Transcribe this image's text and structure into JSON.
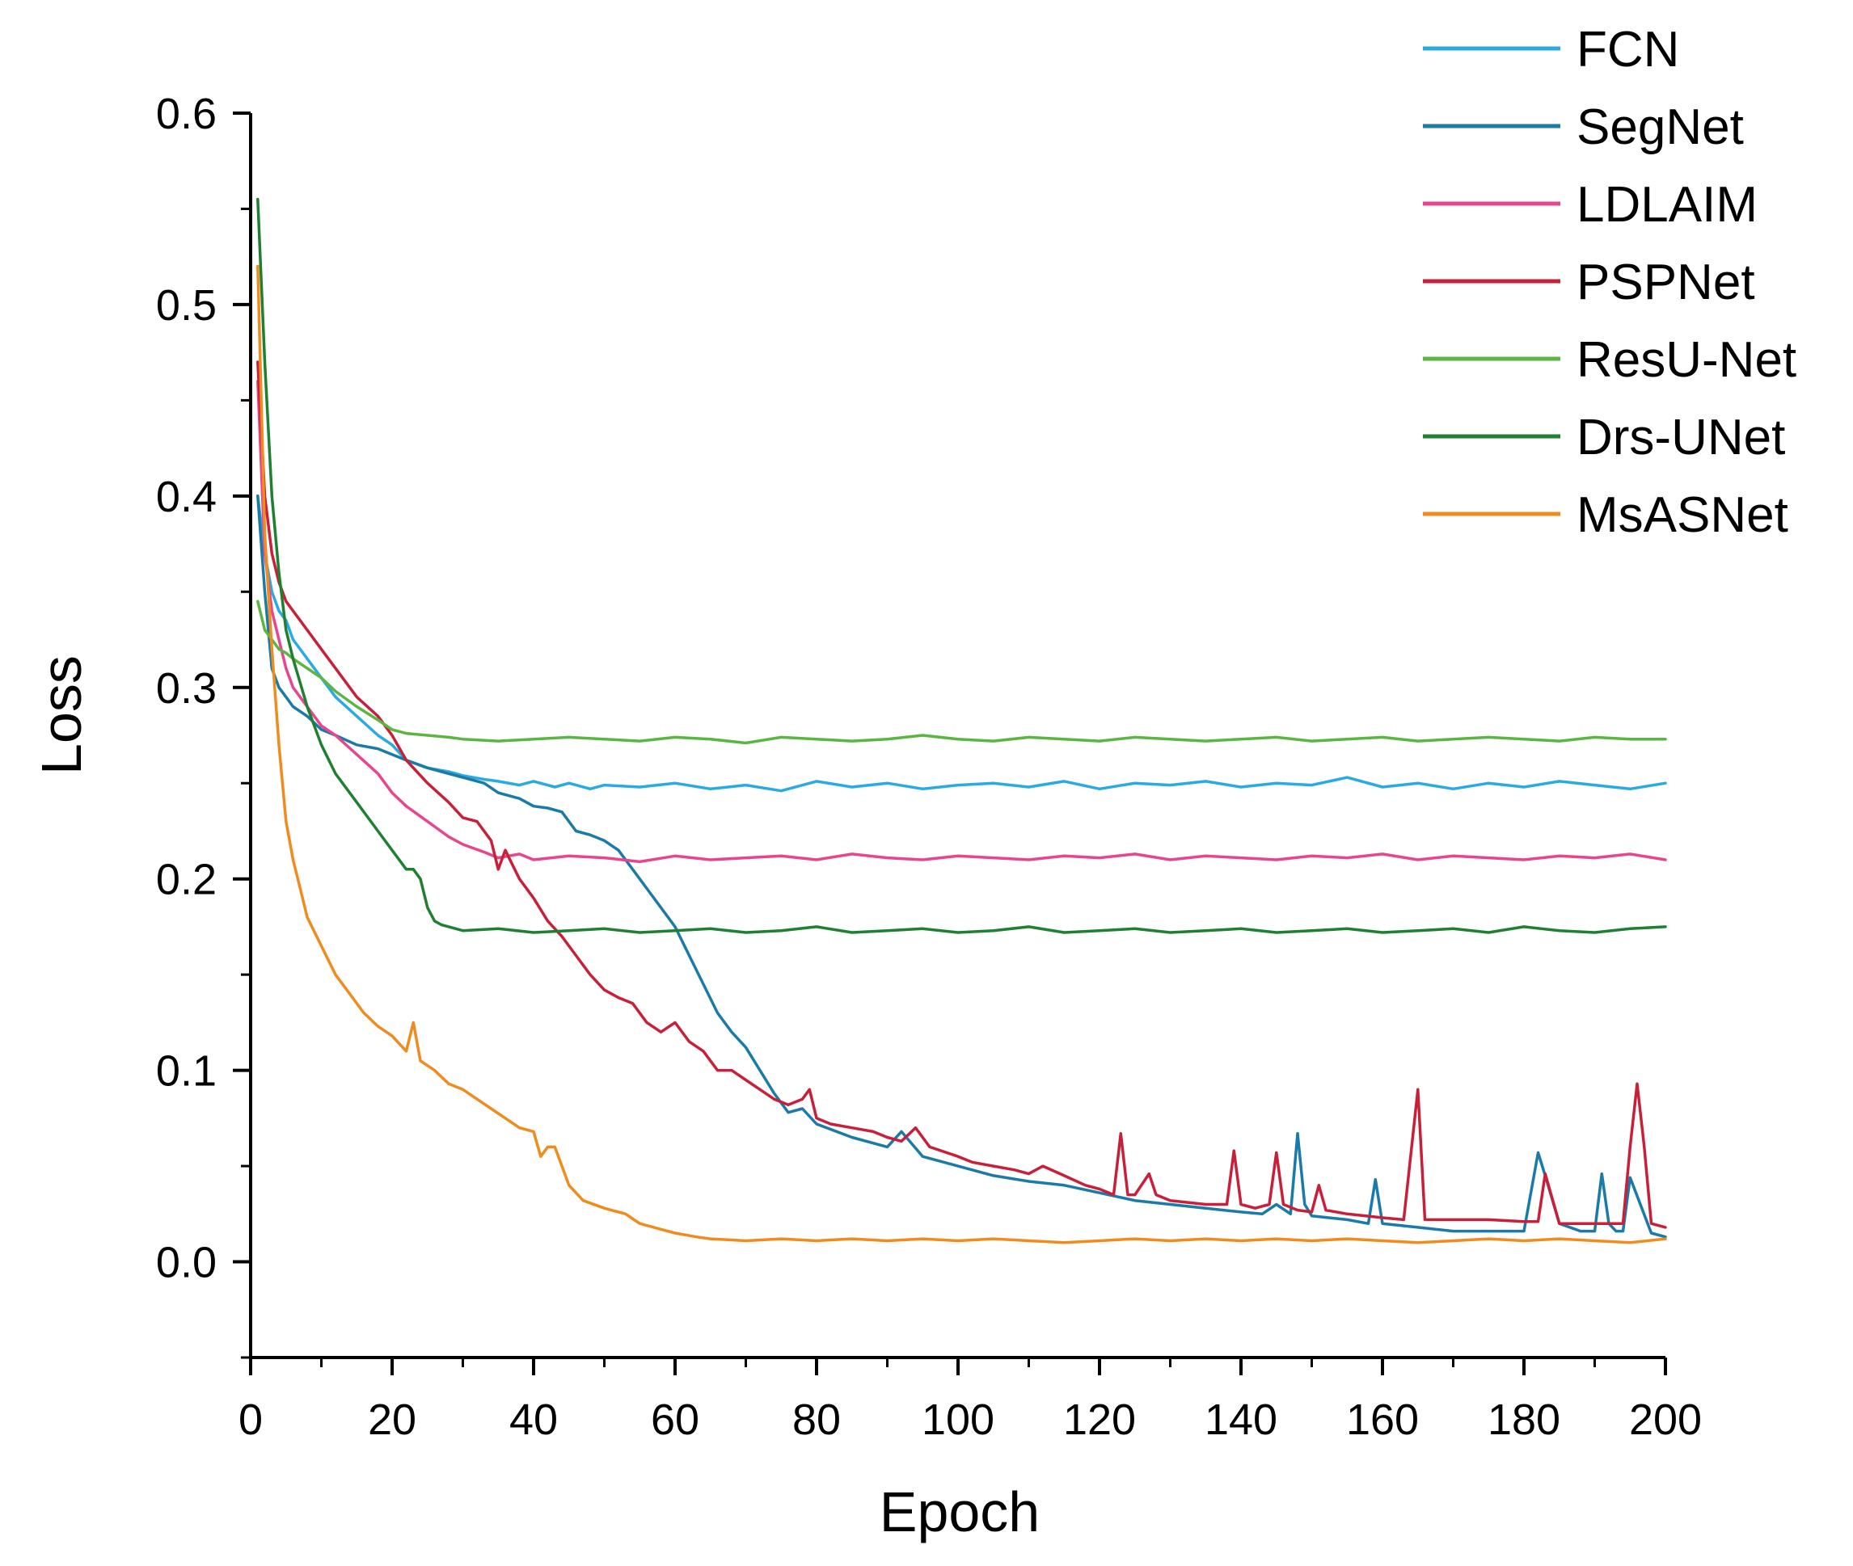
{
  "chart_data": {
    "type": "line",
    "title": "",
    "xlabel": "Epoch",
    "ylabel": "Loss",
    "xlim": [
      0,
      200
    ],
    "ylim": [
      -0.05,
      0.6
    ],
    "xticks": [
      0,
      20,
      40,
      60,
      80,
      100,
      120,
      140,
      160,
      180,
      200
    ],
    "yticks": [
      0.0,
      0.1,
      0.2,
      0.3,
      0.4,
      0.5,
      0.6
    ],
    "xtick_labels": [
      "0",
      "20",
      "40",
      "60",
      "80",
      "100",
      "120",
      "140",
      "160",
      "180",
      "200"
    ],
    "ytick_labels": [
      "0.0",
      "0.1",
      "0.2",
      "0.3",
      "0.4",
      "0.5",
      "0.6"
    ],
    "legend_position": "top-right",
    "series": [
      {
        "name": "FCN",
        "color": "#29abe2",
        "x": [
          1,
          2,
          3,
          4,
          5,
          6,
          8,
          10,
          12,
          15,
          18,
          20,
          22,
          25,
          28,
          30,
          33,
          35,
          38,
          40,
          43,
          45,
          48,
          50,
          55,
          60,
          65,
          70,
          75,
          80,
          85,
          90,
          95,
          100,
          105,
          110,
          115,
          120,
          125,
          130,
          135,
          140,
          145,
          150,
          155,
          160,
          165,
          170,
          175,
          180,
          185,
          190,
          195,
          200
        ],
        "y": [
          0.4,
          0.37,
          0.35,
          0.34,
          0.335,
          0.325,
          0.315,
          0.305,
          0.295,
          0.285,
          0.275,
          0.27,
          0.262,
          0.258,
          0.256,
          0.254,
          0.252,
          0.251,
          0.249,
          0.251,
          0.248,
          0.25,
          0.247,
          0.249,
          0.248,
          0.25,
          0.247,
          0.249,
          0.246,
          0.251,
          0.248,
          0.25,
          0.247,
          0.249,
          0.25,
          0.248,
          0.251,
          0.247,
          0.25,
          0.249,
          0.251,
          0.248,
          0.25,
          0.249,
          0.253,
          0.248,
          0.25,
          0.247,
          0.25,
          0.248,
          0.251,
          0.249,
          0.247,
          0.25
        ]
      },
      {
        "name": "SegNet",
        "color": "#1a7aa8",
        "x": [
          1,
          2,
          3,
          4,
          5,
          6,
          8,
          10,
          12,
          15,
          18,
          20,
          22,
          25,
          28,
          30,
          33,
          35,
          38,
          40,
          42,
          44,
          46,
          48,
          50,
          52,
          54,
          56,
          58,
          60,
          62,
          64,
          66,
          68,
          70,
          72,
          74,
          76,
          78,
          80,
          85,
          90,
          92,
          95,
          100,
          105,
          110,
          115,
          120,
          125,
          130,
          135,
          140,
          143,
          145,
          147,
          148,
          149,
          150,
          155,
          158,
          159,
          160,
          165,
          170,
          175,
          180,
          182,
          183,
          185,
          188,
          190,
          191,
          192,
          193,
          194,
          195,
          198,
          200
        ],
        "y": [
          0.4,
          0.35,
          0.31,
          0.3,
          0.295,
          0.29,
          0.285,
          0.278,
          0.275,
          0.27,
          0.268,
          0.265,
          0.262,
          0.258,
          0.255,
          0.253,
          0.25,
          0.245,
          0.242,
          0.238,
          0.237,
          0.235,
          0.225,
          0.223,
          0.22,
          0.215,
          0.205,
          0.195,
          0.185,
          0.175,
          0.16,
          0.145,
          0.13,
          0.12,
          0.112,
          0.1,
          0.088,
          0.078,
          0.08,
          0.072,
          0.065,
          0.06,
          0.068,
          0.055,
          0.05,
          0.045,
          0.042,
          0.04,
          0.036,
          0.032,
          0.03,
          0.028,
          0.026,
          0.025,
          0.03,
          0.025,
          0.067,
          0.03,
          0.024,
          0.022,
          0.02,
          0.043,
          0.02,
          0.018,
          0.016,
          0.016,
          0.016,
          0.057,
          0.045,
          0.02,
          0.016,
          0.016,
          0.046,
          0.02,
          0.016,
          0.016,
          0.044,
          0.015,
          0.013
        ]
      },
      {
        "name": "LDLAIM",
        "color": "#e8468c",
        "x": [
          1,
          2,
          3,
          4,
          5,
          6,
          8,
          10,
          12,
          15,
          18,
          20,
          22,
          25,
          28,
          30,
          33,
          35,
          38,
          40,
          45,
          50,
          55,
          60,
          65,
          70,
          75,
          80,
          85,
          90,
          95,
          100,
          105,
          110,
          115,
          120,
          125,
          130,
          135,
          140,
          145,
          150,
          155,
          160,
          165,
          170,
          175,
          180,
          185,
          190,
          195,
          200
        ],
        "y": [
          0.46,
          0.37,
          0.34,
          0.325,
          0.31,
          0.3,
          0.29,
          0.28,
          0.275,
          0.265,
          0.255,
          0.245,
          0.238,
          0.23,
          0.222,
          0.218,
          0.214,
          0.211,
          0.213,
          0.21,
          0.212,
          0.211,
          0.209,
          0.212,
          0.21,
          0.211,
          0.212,
          0.21,
          0.213,
          0.211,
          0.21,
          0.212,
          0.211,
          0.21,
          0.212,
          0.211,
          0.213,
          0.21,
          0.212,
          0.211,
          0.21,
          0.212,
          0.211,
          0.213,
          0.21,
          0.212,
          0.211,
          0.21,
          0.212,
          0.211,
          0.213,
          0.21
        ]
      },
      {
        "name": "PSPNet",
        "color": "#c8203a",
        "x": [
          1,
          2,
          3,
          4,
          5,
          6,
          8,
          10,
          12,
          15,
          18,
          20,
          22,
          25,
          28,
          30,
          32,
          34,
          35,
          36,
          38,
          40,
          42,
          44,
          46,
          48,
          50,
          52,
          54,
          56,
          58,
          60,
          62,
          64,
          66,
          68,
          70,
          72,
          74,
          76,
          78,
          79,
          80,
          82,
          85,
          88,
          90,
          92,
          94,
          96,
          100,
          102,
          105,
          108,
          110,
          112,
          115,
          118,
          120,
          122,
          123,
          124,
          125,
          127,
          128,
          130,
          135,
          138,
          139,
          140,
          142,
          144,
          145,
          146,
          148,
          150,
          151,
          152,
          155,
          160,
          163,
          165,
          166,
          168,
          170,
          175,
          180,
          182,
          183,
          185,
          188,
          190,
          194,
          195,
          196,
          197,
          198,
          200
        ],
        "y": [
          0.47,
          0.4,
          0.37,
          0.355,
          0.345,
          0.34,
          0.33,
          0.32,
          0.31,
          0.295,
          0.285,
          0.275,
          0.262,
          0.25,
          0.24,
          0.232,
          0.23,
          0.22,
          0.205,
          0.215,
          0.2,
          0.19,
          0.178,
          0.17,
          0.16,
          0.15,
          0.142,
          0.138,
          0.135,
          0.125,
          0.12,
          0.125,
          0.115,
          0.11,
          0.1,
          0.1,
          0.095,
          0.09,
          0.085,
          0.082,
          0.085,
          0.09,
          0.075,
          0.072,
          0.07,
          0.068,
          0.065,
          0.063,
          0.07,
          0.06,
          0.055,
          0.052,
          0.05,
          0.048,
          0.046,
          0.05,
          0.045,
          0.04,
          0.038,
          0.035,
          0.067,
          0.035,
          0.035,
          0.046,
          0.035,
          0.032,
          0.03,
          0.03,
          0.058,
          0.03,
          0.028,
          0.03,
          0.057,
          0.03,
          0.027,
          0.026,
          0.04,
          0.027,
          0.025,
          0.023,
          0.022,
          0.09,
          0.022,
          0.022,
          0.022,
          0.022,
          0.021,
          0.021,
          0.046,
          0.02,
          0.02,
          0.02,
          0.02,
          0.06,
          0.093,
          0.06,
          0.02,
          0.018
        ]
      },
      {
        "name": "ResU-Net",
        "color": "#5bb641",
        "x": [
          1,
          2,
          3,
          4,
          5,
          6,
          8,
          10,
          12,
          15,
          18,
          20,
          22,
          25,
          28,
          30,
          35,
          40,
          45,
          50,
          55,
          60,
          65,
          70,
          75,
          80,
          85,
          90,
          95,
          100,
          105,
          110,
          115,
          120,
          125,
          130,
          135,
          140,
          145,
          150,
          155,
          160,
          165,
          170,
          175,
          180,
          185,
          190,
          195,
          200
        ],
        "y": [
          0.345,
          0.33,
          0.325,
          0.32,
          0.318,
          0.315,
          0.31,
          0.305,
          0.298,
          0.29,
          0.283,
          0.278,
          0.276,
          0.275,
          0.274,
          0.273,
          0.272,
          0.273,
          0.274,
          0.273,
          0.272,
          0.274,
          0.273,
          0.271,
          0.274,
          0.273,
          0.272,
          0.273,
          0.275,
          0.273,
          0.272,
          0.274,
          0.273,
          0.272,
          0.274,
          0.273,
          0.272,
          0.273,
          0.274,
          0.272,
          0.273,
          0.274,
          0.272,
          0.273,
          0.274,
          0.273,
          0.272,
          0.274,
          0.273,
          0.273
        ]
      },
      {
        "name": "Drs-UNet",
        "color": "#1e8030",
        "x": [
          1,
          2,
          3,
          4,
          5,
          6,
          8,
          10,
          12,
          15,
          18,
          20,
          22,
          23,
          24,
          25,
          26,
          27,
          28,
          30,
          35,
          40,
          45,
          50,
          55,
          60,
          65,
          70,
          75,
          80,
          85,
          90,
          95,
          100,
          105,
          110,
          115,
          120,
          125,
          130,
          135,
          140,
          145,
          150,
          155,
          160,
          165,
          170,
          175,
          180,
          185,
          190,
          195,
          200
        ],
        "y": [
          0.555,
          0.47,
          0.4,
          0.36,
          0.33,
          0.315,
          0.29,
          0.27,
          0.255,
          0.24,
          0.225,
          0.215,
          0.205,
          0.205,
          0.2,
          0.185,
          0.178,
          0.176,
          0.175,
          0.173,
          0.174,
          0.172,
          0.173,
          0.174,
          0.172,
          0.173,
          0.174,
          0.172,
          0.173,
          0.175,
          0.172,
          0.173,
          0.174,
          0.172,
          0.173,
          0.175,
          0.172,
          0.173,
          0.174,
          0.172,
          0.173,
          0.174,
          0.172,
          0.173,
          0.174,
          0.172,
          0.173,
          0.174,
          0.172,
          0.175,
          0.173,
          0.172,
          0.174,
          0.175
        ]
      },
      {
        "name": "MsASNet",
        "color": "#f08c1e",
        "x": [
          1,
          2,
          3,
          4,
          5,
          6,
          7,
          8,
          10,
          12,
          14,
          16,
          18,
          20,
          22,
          23,
          24,
          26,
          28,
          30,
          32,
          34,
          36,
          38,
          40,
          41,
          42,
          43,
          45,
          47,
          50,
          53,
          55,
          58,
          60,
          63,
          65,
          70,
          75,
          80,
          85,
          90,
          95,
          100,
          105,
          110,
          115,
          120,
          125,
          130,
          135,
          140,
          145,
          150,
          155,
          160,
          165,
          170,
          175,
          180,
          185,
          190,
          195,
          200
        ],
        "y": [
          0.52,
          0.38,
          0.32,
          0.27,
          0.23,
          0.21,
          0.195,
          0.18,
          0.165,
          0.15,
          0.14,
          0.13,
          0.123,
          0.118,
          0.11,
          0.125,
          0.105,
          0.1,
          0.093,
          0.09,
          0.085,
          0.08,
          0.075,
          0.07,
          0.068,
          0.055,
          0.06,
          0.06,
          0.04,
          0.032,
          0.028,
          0.025,
          0.02,
          0.017,
          0.015,
          0.013,
          0.012,
          0.011,
          0.012,
          0.011,
          0.012,
          0.011,
          0.012,
          0.011,
          0.012,
          0.011,
          0.01,
          0.011,
          0.012,
          0.011,
          0.012,
          0.011,
          0.012,
          0.011,
          0.012,
          0.011,
          0.01,
          0.011,
          0.012,
          0.011,
          0.012,
          0.011,
          0.01,
          0.012
        ]
      }
    ]
  }
}
